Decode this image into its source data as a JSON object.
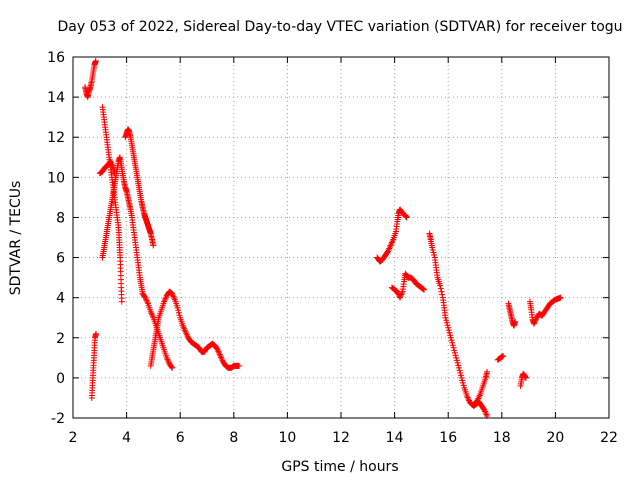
{
  "chart_data": {
    "type": "scatter",
    "title": "Day 053 of 2022, Sidereal Day-to-day VTEC variation (SDTVAR) for receiver togu",
    "xlabel": "GPS time / hours",
    "ylabel": "SDTVAR / TECUs",
    "xlim": [
      2,
      22
    ],
    "ylim": [
      -2,
      16
    ],
    "xticks": [
      "2",
      "4",
      "6",
      "8",
      "10",
      "12",
      "14",
      "16",
      "18",
      "20",
      "22"
    ],
    "yticks": [
      "-2",
      "0",
      "2",
      "4",
      "6",
      "8",
      "10",
      "12",
      "14",
      "16"
    ],
    "grid": true,
    "marker": "plus",
    "series": [
      {
        "name": "SDTVAR",
        "color": "#ff0000",
        "tracks": [
          [
            [
              2.45,
              14.5
            ],
            [
              2.5,
              14.2
            ],
            [
              2.55,
              14.0
            ],
            [
              2.6,
              14.3
            ],
            [
              2.65,
              14.5
            ],
            [
              2.7,
              14.8
            ],
            [
              2.75,
              15.2
            ],
            [
              2.8,
              15.6
            ],
            [
              2.85,
              15.8
            ]
          ],
          [
            [
              2.7,
              -1.0
            ],
            [
              2.72,
              -0.5
            ],
            [
              2.74,
              0.0
            ],
            [
              2.76,
              0.5
            ],
            [
              2.78,
              1.0
            ],
            [
              2.8,
              1.5
            ],
            [
              2.82,
              2.0
            ],
            [
              2.86,
              2.2
            ]
          ],
          [
            [
              3.1,
              13.5
            ],
            [
              3.15,
              13.0
            ],
            [
              3.2,
              12.5
            ],
            [
              3.25,
              12.0
            ],
            [
              3.3,
              11.5
            ],
            [
              3.35,
              11.0
            ],
            [
              3.4,
              10.5
            ],
            [
              3.45,
              10.0
            ],
            [
              3.5,
              9.5
            ],
            [
              3.55,
              9.0
            ],
            [
              3.6,
              8.5
            ],
            [
              3.65,
              8.0
            ],
            [
              3.7,
              7.5
            ],
            [
              3.72,
              7.0
            ],
            [
              3.74,
              6.5
            ],
            [
              3.76,
              6.0
            ],
            [
              3.78,
              5.3
            ],
            [
              3.8,
              4.5
            ],
            [
              3.82,
              3.8
            ]
          ],
          [
            [
              3.0,
              10.2
            ],
            [
              3.1,
              10.3
            ],
            [
              3.2,
              10.5
            ],
            [
              3.3,
              10.6
            ],
            [
              3.4,
              10.8
            ],
            [
              3.5,
              10.5
            ],
            [
              3.55,
              10.2
            ]
          ],
          [
            [
              3.1,
              6.0
            ],
            [
              3.15,
              6.4
            ],
            [
              3.2,
              6.8
            ],
            [
              3.25,
              7.2
            ],
            [
              3.3,
              7.6
            ],
            [
              3.35,
              8.0
            ],
            [
              3.4,
              8.4
            ],
            [
              3.45,
              8.8
            ],
            [
              3.5,
              9.2
            ],
            [
              3.55,
              9.6
            ],
            [
              3.6,
              10.0
            ],
            [
              3.65,
              10.4
            ],
            [
              3.7,
              10.8
            ],
            [
              3.75,
              11.0
            ],
            [
              3.8,
              10.6
            ],
            [
              3.85,
              10.2
            ],
            [
              3.9,
              9.8
            ],
            [
              3.95,
              9.5
            ],
            [
              4.0,
              9.3
            ],
            [
              4.05,
              9.0
            ],
            [
              4.1,
              8.7
            ],
            [
              4.15,
              8.4
            ],
            [
              4.2,
              8.0
            ],
            [
              4.25,
              7.5
            ],
            [
              4.3,
              7.0
            ],
            [
              4.35,
              6.5
            ],
            [
              4.4,
              6.0
            ],
            [
              4.45,
              5.5
            ],
            [
              4.5,
              5.0
            ],
            [
              4.55,
              4.6
            ],
            [
              4.6,
              4.2
            ],
            [
              4.7,
              4.0
            ],
            [
              4.8,
              3.7
            ],
            [
              4.9,
              3.3
            ],
            [
              5.0,
              3.0
            ],
            [
              5.1,
              2.6
            ],
            [
              5.2,
              2.2
            ],
            [
              5.3,
              1.8
            ],
            [
              5.4,
              1.4
            ],
            [
              5.5,
              1.0
            ],
            [
              5.6,
              0.7
            ],
            [
              5.7,
              0.5
            ]
          ],
          [
            [
              3.95,
              12.0
            ],
            [
              4.0,
              12.2
            ],
            [
              4.05,
              12.4
            ],
            [
              4.1,
              12.3
            ],
            [
              4.15,
              12.0
            ],
            [
              4.2,
              11.6
            ],
            [
              4.25,
              11.2
            ],
            [
              4.3,
              10.8
            ],
            [
              4.35,
              10.4
            ],
            [
              4.4,
              10.0
            ],
            [
              4.45,
              9.6
            ],
            [
              4.5,
              9.2
            ],
            [
              4.55,
              8.8
            ],
            [
              4.6,
              8.5
            ],
            [
              4.65,
              8.2
            ],
            [
              4.7,
              8.0
            ],
            [
              4.75,
              7.8
            ],
            [
              4.8,
              7.6
            ],
            [
              4.85,
              7.4
            ],
            [
              4.9,
              7.2
            ],
            [
              4.95,
              6.9
            ],
            [
              5.0,
              6.6
            ]
          ],
          [
            [
              4.9,
              0.6
            ],
            [
              4.95,
              1.0
            ],
            [
              5.0,
              1.4
            ],
            [
              5.05,
              1.8
            ],
            [
              5.1,
              2.2
            ],
            [
              5.15,
              2.6
            ],
            [
              5.2,
              3.0
            ],
            [
              5.3,
              3.4
            ],
            [
              5.4,
              3.8
            ],
            [
              5.5,
              4.1
            ],
            [
              5.6,
              4.3
            ],
            [
              5.7,
              4.2
            ],
            [
              5.8,
              3.9
            ],
            [
              5.9,
              3.5
            ],
            [
              6.0,
              3.0
            ],
            [
              6.1,
              2.6
            ],
            [
              6.2,
              2.3
            ],
            [
              6.3,
              2.0
            ],
            [
              6.4,
              1.8
            ],
            [
              6.5,
              1.7
            ],
            [
              6.6,
              1.6
            ],
            [
              6.7,
              1.5
            ],
            [
              6.8,
              1.3
            ],
            [
              6.9,
              1.3
            ],
            [
              7.0,
              1.5
            ],
            [
              7.1,
              1.6
            ],
            [
              7.2,
              1.7
            ],
            [
              7.3,
              1.6
            ],
            [
              7.4,
              1.4
            ],
            [
              7.5,
              1.1
            ],
            [
              7.6,
              0.8
            ],
            [
              7.7,
              0.6
            ],
            [
              7.8,
              0.5
            ],
            [
              7.9,
              0.5
            ],
            [
              8.0,
              0.6
            ],
            [
              8.1,
              0.6
            ],
            [
              8.2,
              0.6
            ]
          ],
          [
            [
              13.35,
              6.0
            ],
            [
              13.45,
              5.8
            ],
            [
              13.55,
              5.9
            ],
            [
              13.65,
              6.1
            ],
            [
              13.75,
              6.3
            ],
            [
              13.85,
              6.6
            ],
            [
              13.95,
              6.9
            ],
            [
              14.05,
              7.3
            ],
            [
              14.1,
              7.8
            ],
            [
              14.15,
              8.2
            ],
            [
              14.2,
              8.4
            ],
            [
              14.3,
              8.2
            ],
            [
              14.4,
              8.1
            ],
            [
              14.45,
              8.0
            ]
          ],
          [
            [
              13.9,
              4.5
            ],
            [
              14.0,
              4.4
            ],
            [
              14.1,
              4.3
            ],
            [
              14.2,
              4.0
            ],
            [
              14.3,
              4.3
            ],
            [
              14.35,
              4.8
            ],
            [
              14.4,
              5.2
            ],
            [
              14.5,
              5.0
            ],
            [
              14.6,
              5.0
            ],
            [
              14.7,
              4.9
            ],
            [
              14.8,
              4.7
            ],
            [
              14.9,
              4.6
            ],
            [
              15.0,
              4.5
            ],
            [
              15.1,
              4.4
            ]
          ],
          [
            [
              15.3,
              7.2
            ],
            [
              15.35,
              6.9
            ],
            [
              15.4,
              6.5
            ],
            [
              15.5,
              6.0
            ],
            [
              15.55,
              5.5
            ],
            [
              15.6,
              5.0
            ],
            [
              15.7,
              4.6
            ],
            [
              15.8,
              4.0
            ],
            [
              15.85,
              3.5
            ],
            [
              15.9,
              3.0
            ],
            [
              16.0,
              2.5
            ],
            [
              16.1,
              2.0
            ],
            [
              16.2,
              1.5
            ],
            [
              16.3,
              1.0
            ],
            [
              16.4,
              0.5
            ],
            [
              16.5,
              0.0
            ],
            [
              16.6,
              -0.5
            ],
            [
              16.7,
              -0.9
            ],
            [
              16.8,
              -1.2
            ],
            [
              16.9,
              -1.35
            ],
            [
              17.0,
              -1.3
            ],
            [
              17.1,
              -1.1
            ],
            [
              17.2,
              -0.8
            ],
            [
              17.3,
              -0.4
            ],
            [
              17.4,
              0.0
            ],
            [
              17.45,
              0.3
            ]
          ],
          [
            [
              16.95,
              -1.4
            ],
            [
              17.05,
              -1.3
            ],
            [
              17.15,
              -1.2
            ],
            [
              17.25,
              -1.4
            ],
            [
              17.35,
              -1.6
            ],
            [
              17.45,
              -1.9
            ]
          ],
          [
            [
              17.85,
              0.9
            ],
            [
              17.95,
              1.0
            ],
            [
              18.05,
              1.1
            ]
          ],
          [
            [
              18.25,
              3.7
            ],
            [
              18.3,
              3.4
            ],
            [
              18.35,
              3.1
            ],
            [
              18.4,
              2.8
            ],
            [
              18.45,
              2.6
            ],
            [
              18.5,
              2.8
            ]
          ],
          [
            [
              18.7,
              -0.4
            ],
            [
              18.75,
              0.0
            ],
            [
              18.8,
              0.2
            ],
            [
              18.85,
              0.1
            ],
            [
              18.9,
              0.0
            ]
          ],
          [
            [
              19.05,
              3.8
            ],
            [
              19.1,
              3.4
            ],
            [
              19.15,
              2.9
            ],
            [
              19.2,
              2.7
            ],
            [
              19.3,
              3.0
            ],
            [
              19.4,
              3.2
            ],
            [
              19.5,
              3.1
            ],
            [
              19.6,
              3.3
            ],
            [
              19.7,
              3.5
            ],
            [
              19.8,
              3.7
            ],
            [
              19.9,
              3.8
            ],
            [
              20.0,
              3.9
            ],
            [
              20.1,
              3.95
            ],
            [
              20.2,
              4.0
            ]
          ]
        ]
      }
    ]
  }
}
